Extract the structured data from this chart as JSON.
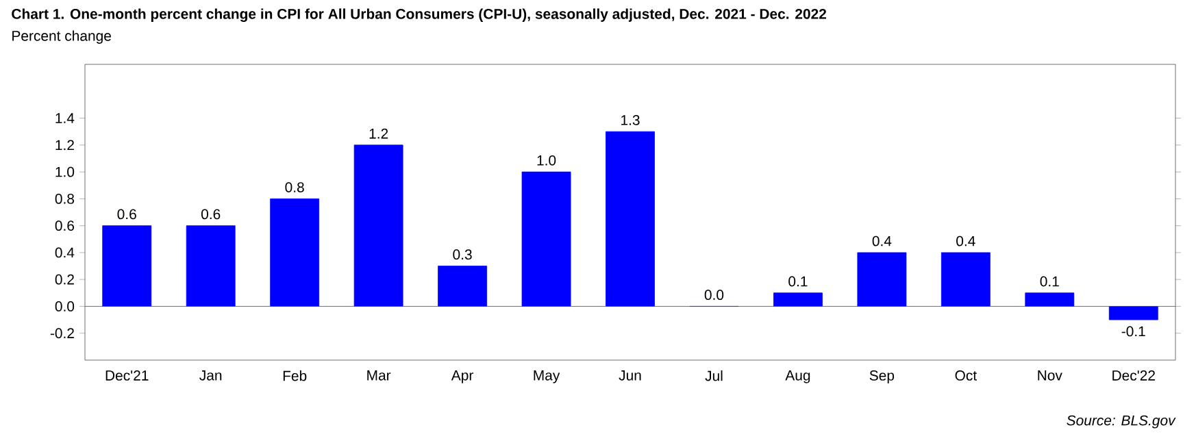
{
  "chart_data": {
    "type": "bar",
    "title": "Chart 1. One-month percent change in CPI for All Urban Consumers (CPI-U), seasonally adjusted, Dec. 2021 - Dec. 2022",
    "categories": [
      "Dec'21",
      "Jan",
      "Feb",
      "Mar",
      "Apr",
      "May",
      "Jun",
      "Jul",
      "Aug",
      "Sep",
      "Oct",
      "Nov",
      "Dec'22"
    ],
    "values": [
      0.6,
      0.6,
      0.8,
      1.2,
      0.3,
      1.0,
      1.3,
      0.0,
      0.1,
      0.4,
      0.4,
      0.1,
      -0.1
    ],
    "value_labels": [
      "0.6",
      "0.6",
      "0.8",
      "1.2",
      "0.3",
      "1.0",
      "1.3",
      "0.0",
      "0.1",
      "0.4",
      "0.4",
      "0.1",
      "-0.1"
    ],
    "color": "#0000ff",
    "ylim": [
      -0.4,
      1.8
    ],
    "yticks": [
      -0.2,
      {
        "value": 0,
        "label": "0.0"
      },
      0.2,
      0.4,
      0.6,
      0.8,
      {
        "value": 1,
        "label": "1.0"
      },
      1.2,
      1.4
    ],
    "ref_lines": [
      {
        "axis": "y",
        "value": 0
      }
    ],
    "annotations": [
      "Percent change",
      "Source: BLS.gov"
    ]
  }
}
